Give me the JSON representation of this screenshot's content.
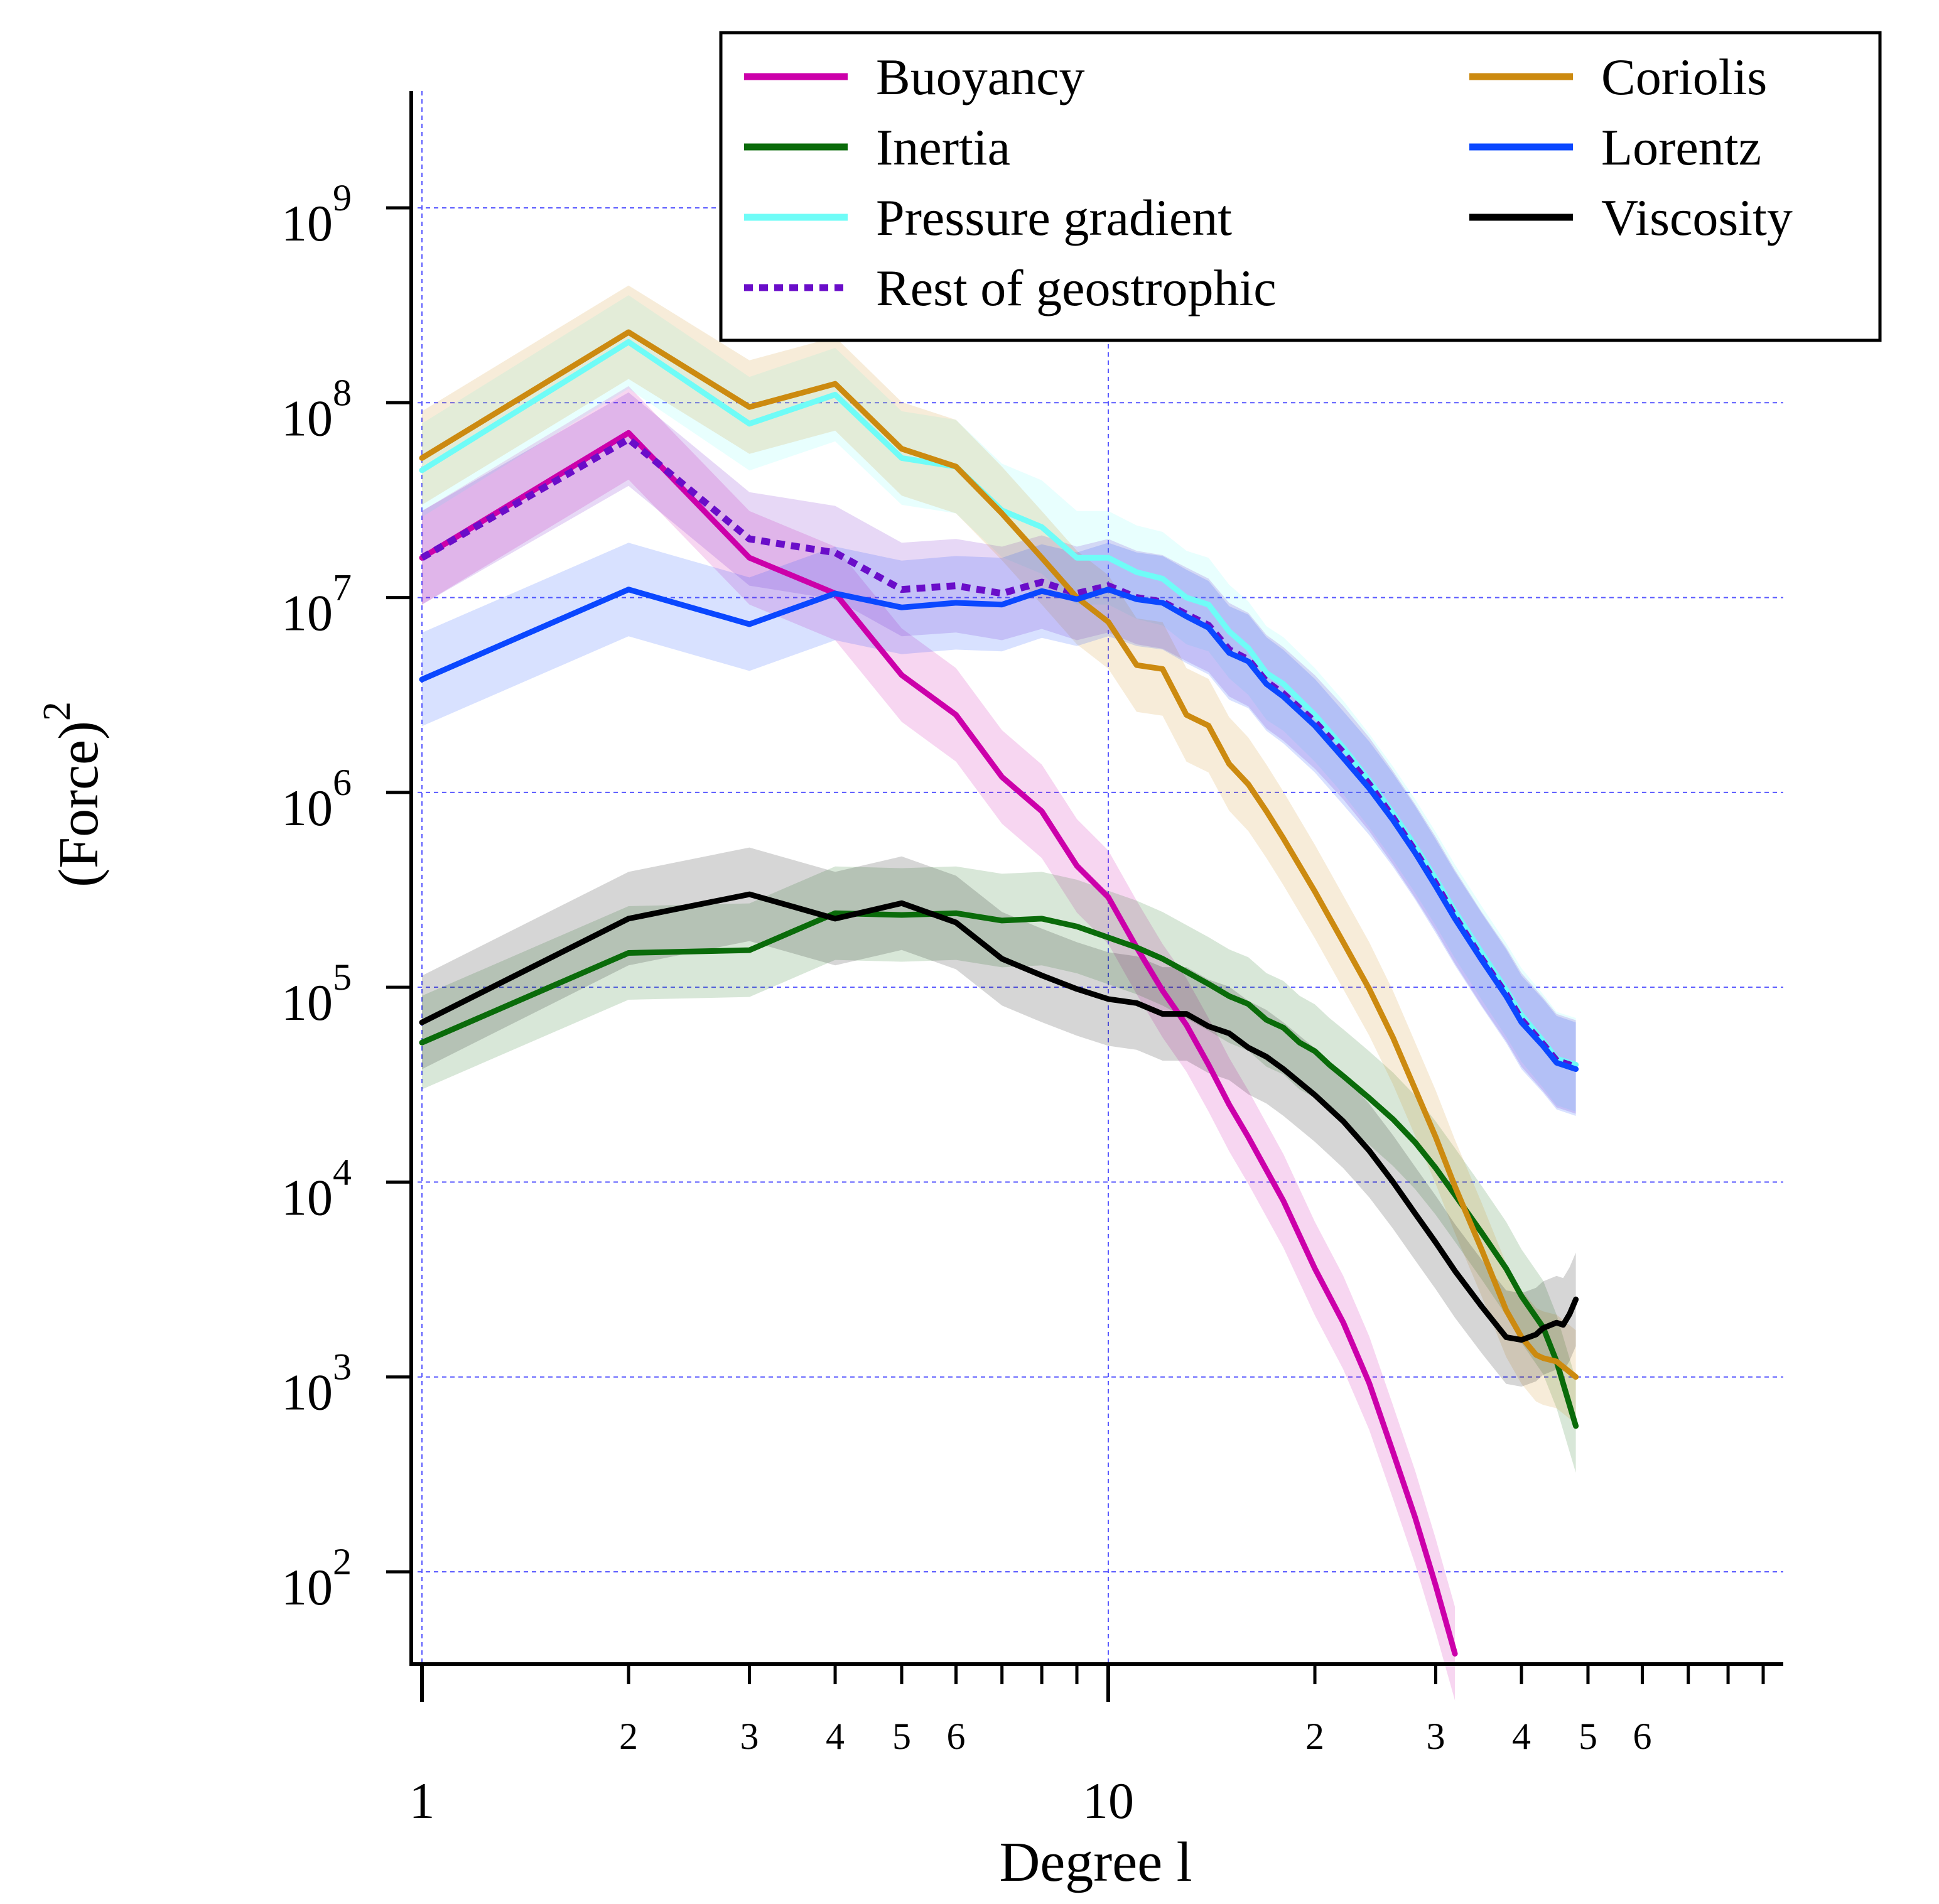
{
  "chart_data": {
    "type": "line",
    "title": "",
    "xlabel": "Degree l",
    "ylabel": "(Force)",
    "ylabel_superscript": "2",
    "xscale": "log",
    "yscale": "log",
    "xlim": [
      0.97,
      85
    ],
    "ylim": [
      35,
      4000000000
    ],
    "grid": true,
    "legend_position": "top-right",
    "x_major_tick_labels": [
      "1",
      "10"
    ],
    "x_major_tick_values": [
      1,
      10
    ],
    "x_minor_tick_labels": [
      "2",
      "3",
      "4",
      "5",
      "6",
      "2",
      "3",
      "4",
      "5",
      "6"
    ],
    "x_minor_tick_values": [
      2,
      3,
      4,
      5,
      6,
      20,
      30,
      40,
      50,
      60
    ],
    "y_tick_values": [
      100,
      1000,
      10000,
      100000,
      1000000,
      10000000,
      100000000,
      1000000000
    ],
    "y_tick_labels": [
      {
        "base": "10",
        "exp": "2"
      },
      {
        "base": "10",
        "exp": "3"
      },
      {
        "base": "10",
        "exp": "4"
      },
      {
        "base": "10",
        "exp": "5"
      },
      {
        "base": "10",
        "exp": "6"
      },
      {
        "base": "10",
        "exp": "7"
      },
      {
        "base": "10",
        "exp": "8"
      },
      {
        "base": "10",
        "exp": "9"
      }
    ],
    "series": [
      {
        "name": "Buoyancy",
        "color": "#cc00aa",
        "dashed": false,
        "band": true,
        "x": [
          1,
          2,
          3,
          4,
          5,
          6,
          7,
          8,
          9,
          10,
          11,
          12,
          13,
          14,
          15,
          16,
          18,
          20,
          22,
          24,
          26,
          28,
          30,
          32
        ],
        "y": [
          16000000,
          70000000,
          16000000,
          10500000,
          4000000,
          2500000,
          1200000,
          800000,
          420000,
          290000,
          160000,
          96000,
          64000,
          40000,
          25000,
          17000,
          8000,
          3600,
          1900,
          930,
          410,
          190,
          85,
          38
        ]
      },
      {
        "name": "Inertia",
        "color": "#0a6b0a",
        "dashed": false,
        "band": true,
        "x": [
          1,
          2,
          3,
          4,
          5,
          6,
          7,
          8,
          9,
          10,
          11,
          12,
          13,
          14,
          15,
          16,
          17,
          18,
          19,
          20,
          21,
          22,
          24,
          26,
          28,
          30,
          32,
          35,
          38,
          40,
          43,
          45,
          48
        ],
        "y": [
          52000,
          150000,
          155000,
          240000,
          235000,
          240000,
          220000,
          225000,
          205000,
          180000,
          160000,
          140000,
          120000,
          104000,
          90000,
          82000,
          68000,
          62000,
          52000,
          47000,
          40000,
          35000,
          27000,
          21000,
          16000,
          11800,
          8600,
          5500,
          3600,
          2600,
          1800,
          1200,
          560
        ]
      },
      {
        "name": "Pressure gradient",
        "color": "#6ffcf7",
        "dashed": false,
        "band": true,
        "x": [
          1,
          2,
          3,
          4,
          5,
          6,
          7,
          8,
          9,
          10,
          11,
          12,
          13,
          14,
          15,
          16,
          17,
          18,
          20,
          22,
          24,
          26,
          28,
          30,
          32,
          35,
          38,
          40,
          43,
          45,
          48
        ],
        "y": [
          45000000,
          205000000,
          78000000,
          110000000,
          52000000,
          47000000,
          28000000,
          23000000,
          16000000,
          16000000,
          13500000,
          12500000,
          10000000,
          9200000,
          6700000,
          5500000,
          4100000,
          3600000,
          2500000,
          1700000,
          1150000,
          780000,
          530000,
          360000,
          245000,
          150000,
          97000,
          72000,
          53000,
          43000,
          40000
        ]
      },
      {
        "name": "Rest of geostrophic",
        "color": "#6a0dc9",
        "dashed": true,
        "band": true,
        "x": [
          1,
          2,
          3,
          4,
          5,
          6,
          7,
          8,
          9,
          10,
          11,
          12,
          13,
          14,
          15,
          16,
          17,
          18,
          20,
          22,
          24,
          26,
          28,
          30,
          32,
          35,
          38,
          40,
          43,
          45,
          48
        ],
        "y": [
          16000000,
          65000000,
          20000000,
          17000000,
          11000000,
          11500000,
          10500000,
          12000000,
          10500000,
          11500000,
          10000000,
          9500000,
          8200000,
          7200000,
          5400000,
          4800000,
          3700000,
          3200000,
          2300000,
          1600000,
          1100000,
          740000,
          500000,
          340000,
          230000,
          140000,
          92000,
          68000,
          51000,
          42000,
          39000
        ]
      },
      {
        "name": "Coriolis",
        "color": "#cc8a10",
        "dashed": false,
        "band": true,
        "x": [
          1,
          2,
          3,
          4,
          5,
          6,
          7,
          8,
          9,
          10,
          11,
          12,
          13,
          14,
          15,
          16,
          17,
          18,
          20,
          22,
          24,
          26,
          28,
          30,
          32,
          35,
          38,
          40,
          42,
          43,
          45,
          48
        ],
        "y": [
          52000000,
          230000000,
          95000000,
          125000000,
          58000000,
          47000000,
          27000000,
          16000000,
          10000000,
          7500000,
          4500000,
          4300000,
          2500000,
          2200000,
          1400000,
          1100000,
          800000,
          580000,
          310000,
          170000,
          98000,
          55000,
          30000,
          17000,
          9500,
          4500,
          2200,
          1600,
          1300,
          1250,
          1200,
          1000
        ]
      },
      {
        "name": "Lorentz",
        "color": "#0a47ff",
        "dashed": false,
        "band": true,
        "x": [
          1,
          2,
          3,
          4,
          5,
          6,
          7,
          8,
          9,
          10,
          11,
          12,
          13,
          14,
          15,
          16,
          17,
          18,
          20,
          22,
          24,
          26,
          28,
          30,
          32,
          35,
          38,
          40,
          43,
          45,
          48
        ],
        "y": [
          3800000,
          11000000,
          7300000,
          10500000,
          8900000,
          9400000,
          9200000,
          10800000,
          9800000,
          11000000,
          9800000,
          9400000,
          8000000,
          7000000,
          5200000,
          4700000,
          3600000,
          3100000,
          2200000,
          1500000,
          1050000,
          720000,
          490000,
          330000,
          225000,
          138000,
          90000,
          66000,
          50000,
          41000,
          38000
        ]
      },
      {
        "name": "Viscosity",
        "color": "#000000",
        "dashed": false,
        "band": true,
        "x": [
          1,
          2,
          3,
          4,
          5,
          6,
          7,
          8,
          9,
          10,
          11,
          12,
          13,
          14,
          15,
          16,
          17,
          18,
          20,
          22,
          24,
          26,
          28,
          30,
          32,
          35,
          38,
          40,
          42,
          43,
          45,
          46,
          47,
          48
        ],
        "y": [
          66000,
          225000,
          300000,
          225000,
          270000,
          215000,
          140000,
          115000,
          98000,
          87000,
          83000,
          73000,
          73000,
          63000,
          58000,
          49000,
          44000,
          38000,
          28000,
          20500,
          14500,
          10000,
          6900,
          4900,
          3500,
          2300,
          1600,
          1550,
          1650,
          1780,
          1900,
          1850,
          2100,
          2500
        ]
      }
    ]
  }
}
